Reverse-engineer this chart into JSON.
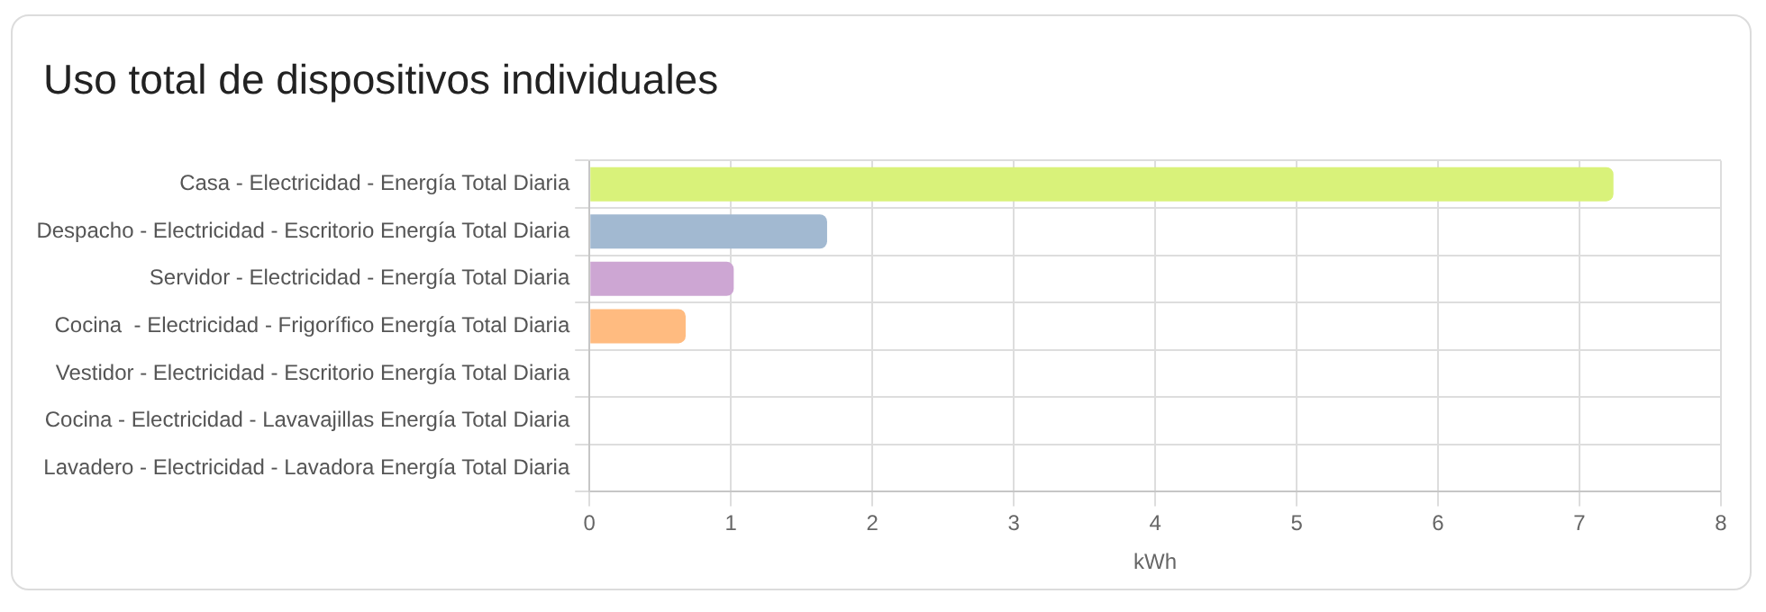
{
  "chart_data": {
    "type": "bar",
    "orientation": "horizontal",
    "title": "Uso total de dispositivos individuales",
    "xlabel": "kWh",
    "categories": [
      "Casa - Electricidad - Energía Total Diaria",
      "Despacho - Electricidad - Escritorio Energía Total Diaria",
      "Servidor - Electricidad - Energía Total Diaria",
      "Cocina  - Electricidad - Frigorífico Energía Total Diaria",
      "Vestidor - Electricidad - Escritorio Energía Total Diaria",
      "Cocina - Electricidad - Lavavajillas Energía Total Diaria",
      "Lavadero - Electricidad - Lavadora Energía Total Diaria"
    ],
    "values": [
      7.24,
      1.68,
      1.02,
      0.68,
      0,
      0,
      0
    ],
    "colors": [
      "#d9f27a",
      "#a2b9d1",
      "#cda6d3",
      "#ffbb80",
      "#cccccc",
      "#cccccc",
      "#cccccc"
    ],
    "xlim": [
      0,
      8
    ],
    "xticks": [
      0,
      1,
      2,
      3,
      4,
      5,
      6,
      7,
      8
    ],
    "grid": true,
    "legend": false
  }
}
